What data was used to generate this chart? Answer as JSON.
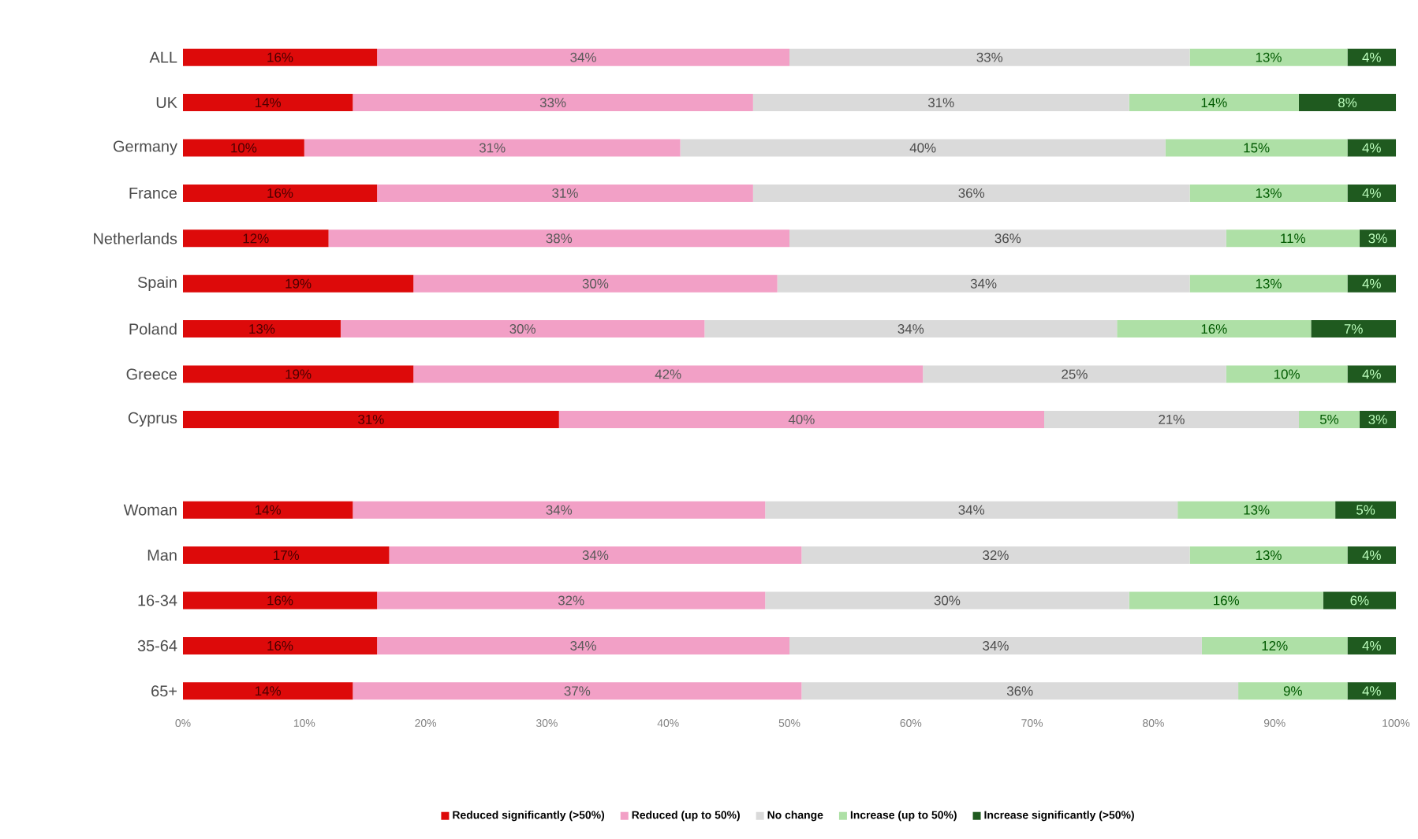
{
  "chart_data": [
    {
      "type": "bar",
      "orientation": "horizontal",
      "stacked": true,
      "tick_labels": "y",
      "categories": [
        "ALL",
        "UK",
        "Germany",
        "France",
        "Netherlands",
        "Spain",
        "Poland",
        "Greece",
        "Cyprus"
      ],
      "xlim": [
        0,
        100
      ],
      "series": [
        {
          "color": "#dd0a0a",
          "values": [
            16,
            14,
            10,
            16,
            12,
            19,
            13,
            19,
            31
          ],
          "value_labels": [
            "16%",
            "14%",
            "10%",
            "16%",
            "12%",
            "19%",
            "13%",
            "19%",
            "31%"
          ]
        },
        {
          "color": "#f2a0c6",
          "values": [
            34,
            33,
            31,
            31,
            38,
            30,
            30,
            42,
            40
          ],
          "value_labels": [
            "34%",
            "33%",
            "31%",
            "31%",
            "38%",
            "30%",
            "30%",
            "42%",
            "40%"
          ]
        },
        {
          "color": "#dadada",
          "values": [
            33,
            31,
            40,
            36,
            36,
            34,
            34,
            25,
            21
          ],
          "value_labels": [
            "33%",
            "31%",
            "40%",
            "36%",
            "36%",
            "34%",
            "34%",
            "25%",
            "21%"
          ]
        },
        {
          "color": "#aee0a6",
          "values": [
            13,
            14,
            15,
            13,
            11,
            13,
            16,
            10,
            5
          ],
          "value_labels": [
            "13%",
            "14%",
            "15%",
            "13%",
            "11%",
            "13%",
            "16%",
            "10%",
            "5%"
          ]
        },
        {
          "color": "#1f5a1f",
          "values": [
            4,
            8,
            4,
            4,
            3,
            4,
            7,
            4,
            3
          ],
          "value_labels": [
            "4%",
            "8%",
            "4%",
            "4%",
            "3%",
            "4%",
            "7%",
            "4%",
            "3%"
          ]
        }
      ]
    },
    {
      "type": "bar",
      "orientation": "horizontal",
      "stacked": true,
      "legend": "bottom",
      "categories": [
        "Woman",
        "Man",
        "16-34",
        "35-64",
        "65+"
      ],
      "xlim": [
        0,
        100
      ],
      "xticks": [
        {
          "value": 0,
          "label": "0%"
        },
        {
          "value": 10,
          "label": "10%"
        },
        {
          "value": 20,
          "label": "20%"
        },
        {
          "value": 30,
          "label": "30%"
        },
        {
          "value": 40,
          "label": "40%"
        },
        {
          "value": 50,
          "label": "50%"
        },
        {
          "value": 60,
          "label": "60%"
        },
        {
          "value": 70,
          "label": "70%"
        },
        {
          "value": 80,
          "label": "80%"
        },
        {
          "value": 90,
          "label": "90%"
        },
        {
          "value": 100,
          "label": "100%"
        }
      ],
      "series": [
        {
          "name": "Reduced significantly (>50%)",
          "color": "#dd0a0a",
          "values": [
            14,
            17,
            16,
            16,
            14
          ],
          "value_labels": [
            "14%",
            "17%",
            "16%",
            "16%",
            "14%"
          ]
        },
        {
          "name": "Reduced (up to 50%)",
          "color": "#f2a0c6",
          "values": [
            34,
            34,
            32,
            34,
            37
          ],
          "value_labels": [
            "34%",
            "34%",
            "32%",
            "34%",
            "37%"
          ]
        },
        {
          "name": "No change",
          "color": "#dadada",
          "values": [
            34,
            32,
            30,
            34,
            36
          ],
          "value_labels": [
            "34%",
            "32%",
            "30%",
            "34%",
            "36%"
          ]
        },
        {
          "name": "Increase (up to 50%)",
          "color": "#aee0a6",
          "values": [
            13,
            13,
            16,
            12,
            9
          ],
          "value_labels": [
            "13%",
            "13%",
            "16%",
            "12%",
            "9%"
          ]
        },
        {
          "name": "Increase significantly (>50%)",
          "color": "#1f5a1f",
          "values": [
            5,
            4,
            6,
            4,
            4
          ],
          "value_labels": [
            "5%",
            "4%",
            "6%",
            "4%",
            "4%"
          ]
        }
      ]
    }
  ]
}
